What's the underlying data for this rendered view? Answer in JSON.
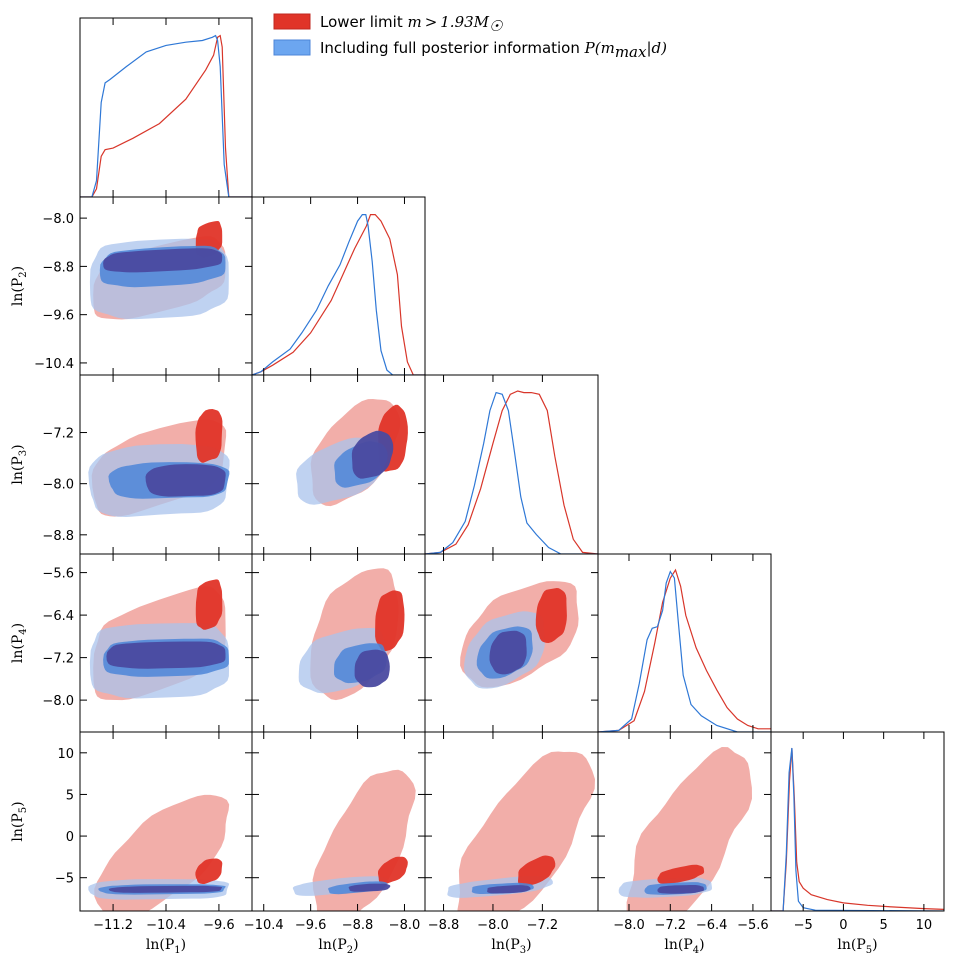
{
  "chart_data": {
    "type": "corner",
    "title": "",
    "parameters": [
      "ln(P1)",
      "ln(P2)",
      "ln(P3)",
      "ln(P4)",
      "ln(P5)"
    ],
    "axis_labels": {
      "p1": {
        "base": "ln(P",
        "sub": "1",
        "close": ")"
      },
      "p2": {
        "base": "ln(P",
        "sub": "2",
        "close": ")"
      },
      "p3": {
        "base": "ln(P",
        "sub": "3",
        "close": ")"
      },
      "p4": {
        "base": "ln(P",
        "sub": "4",
        "close": ")"
      },
      "p5": {
        "base": "ln(P",
        "sub": "5",
        "close": ")"
      }
    },
    "ranges": {
      "p1": [
        -11.7,
        -9.1
      ],
      "p2": [
        -10.6,
        -7.65
      ],
      "p3": [
        -9.1,
        -6.3
      ],
      "p4": [
        -8.6,
        -5.25
      ],
      "p5": [
        -9,
        12.5
      ]
    },
    "ticks": {
      "p1": [
        -11.2,
        -10.4,
        -9.6
      ],
      "p2": [
        -10.4,
        -9.6,
        -8.8,
        -8.0
      ],
      "p3": [
        -8.8,
        -8.0,
        -7.2
      ],
      "p4": [
        -8.0,
        -7.2,
        -6.4,
        -5.6
      ],
      "p5": [
        -5,
        0,
        5,
        10
      ]
    },
    "tick_labels": {
      "p1": [
        "−11.2",
        "−10.4",
        "−9.6"
      ],
      "p2": [
        "−10.4",
        "−9.6",
        "−8.8",
        "−8.0"
      ],
      "p3": [
        "−8.8",
        "−8.0",
        "−7.2"
      ],
      "p4": [
        "−8.0",
        "−7.2",
        "−6.4",
        "−5.6"
      ],
      "p5": [
        "−5",
        "0",
        "5",
        "10"
      ]
    },
    "series": [
      {
        "name": "Lower limit m > 1.93 M_sun",
        "legend_text": "Lower limit",
        "legend_math": "m > 1.93M",
        "legend_math_sub": "☉",
        "color_dark": "#e03428",
        "color_light": "#f0a09a",
        "marginals": {
          "p1": {
            "x": [
              -11.7,
              -11.52,
              -11.45,
              -11.38,
              -11.32,
              -11.2,
              -10.9,
              -10.5,
              -10.1,
              -9.8,
              -9.68,
              -9.62,
              -9.58,
              -9.55,
              -9.5,
              -9.45,
              -9.1
            ],
            "y": [
              0,
              0,
              0.05,
              0.25,
              0.29,
              0.3,
              0.36,
              0.45,
              0.6,
              0.78,
              0.87,
              0.98,
              0.99,
              0.92,
              0.3,
              0,
              0
            ]
          },
          "p2": {
            "x": [
              -10.6,
              -10.45,
              -10.25,
              -9.9,
              -9.6,
              -9.25,
              -9.05,
              -8.85,
              -8.65,
              -8.58,
              -8.5,
              -8.4,
              -8.25,
              -8.12,
              -8.05,
              -7.95,
              -7.85,
              -7.65
            ],
            "y": [
              0,
              0.02,
              0.06,
              0.14,
              0.26,
              0.46,
              0.62,
              0.78,
              0.92,
              0.99,
              0.99,
              0.95,
              0.84,
              0.62,
              0.3,
              0.08,
              0,
              0
            ]
          },
          "p3": {
            "x": [
              -9.1,
              -8.85,
              -8.6,
              -8.4,
              -8.2,
              -8.0,
              -7.85,
              -7.72,
              -7.6,
              -7.5,
              -7.38,
              -7.25,
              -7.12,
              -7.0,
              -6.85,
              -6.7,
              -6.55,
              -6.3
            ],
            "y": [
              0,
              0.01,
              0.06,
              0.18,
              0.4,
              0.68,
              0.88,
              0.98,
              1.0,
              0.99,
              0.99,
              0.98,
              0.88,
              0.6,
              0.3,
              0.09,
              0.01,
              0
            ]
          },
          "p4": {
            "x": [
              -8.6,
              -8.2,
              -7.9,
              -7.7,
              -7.5,
              -7.35,
              -7.2,
              -7.1,
              -7.0,
              -6.9,
              -6.7,
              -6.5,
              -6.3,
              -6.1,
              -5.9,
              -5.7,
              -5.5,
              -5.25
            ],
            "y": [
              0,
              0.01,
              0.07,
              0.25,
              0.55,
              0.8,
              0.95,
              1.0,
              0.9,
              0.72,
              0.52,
              0.38,
              0.26,
              0.15,
              0.08,
              0.04,
              0.02,
              0.02
            ]
          },
          "p5": {
            "x": [
              -9,
              -7.5,
              -7.1,
              -6.7,
              -6.4,
              -6.1,
              -5.8,
              -5.5,
              -5.0,
              -4.0,
              -2.0,
              0,
              3,
              6,
              10,
              12.5
            ],
            "y": [
              0,
              0,
              0.3,
              0.8,
              1.0,
              0.7,
              0.3,
              0.18,
              0.14,
              0.1,
              0.07,
              0.05,
              0.035,
              0.025,
              0.015,
              0.01
            ]
          }
        }
      },
      {
        "name": "Including full posterior information P(m_max|d)",
        "legend_text": "Including full posterior information",
        "legend_math": "P(m",
        "legend_math_sub": "max",
        "legend_math_end": "|d)",
        "color_dark": "#4c86d8",
        "color_light": "#a9c3ec",
        "color_overlap": "#4a4aa0",
        "marginals": {
          "p1": {
            "x": [
              -11.7,
              -11.52,
              -11.45,
              -11.38,
              -11.32,
              -11.25,
              -11.0,
              -10.7,
              -10.4,
              -10.1,
              -9.85,
              -9.7,
              -9.65,
              -9.62,
              -9.58,
              -9.52,
              -9.45,
              -9.1
            ],
            "y": [
              0,
              0,
              0.1,
              0.58,
              0.7,
              0.72,
              0.8,
              0.89,
              0.93,
              0.95,
              0.96,
              0.98,
              0.99,
              0.96,
              0.8,
              0.2,
              0,
              0
            ]
          },
          "p2": {
            "x": [
              -10.6,
              -10.45,
              -10.25,
              -9.95,
              -9.75,
              -9.5,
              -9.3,
              -9.1,
              -8.95,
              -8.8,
              -8.72,
              -8.66,
              -8.62,
              -8.55,
              -8.48,
              -8.4,
              -8.3,
              -8.2,
              -7.65
            ],
            "y": [
              0,
              0.02,
              0.08,
              0.16,
              0.26,
              0.4,
              0.55,
              0.68,
              0.82,
              0.95,
              0.99,
              0.99,
              0.92,
              0.7,
              0.4,
              0.15,
              0.03,
              0,
              0
            ]
          },
          "p3": {
            "x": [
              -9.1,
              -8.85,
              -8.65,
              -8.45,
              -8.3,
              -8.15,
              -8.05,
              -7.95,
              -7.85,
              -7.75,
              -7.65,
              -7.55,
              -7.45,
              -7.3,
              -7.1,
              -6.9,
              -6.3
            ],
            "y": [
              0,
              0.01,
              0.07,
              0.2,
              0.42,
              0.68,
              0.88,
              0.99,
              0.98,
              0.88,
              0.62,
              0.35,
              0.19,
              0.12,
              0.04,
              0,
              0
            ]
          },
          "p4": {
            "x": [
              -8.6,
              -8.2,
              -7.95,
              -7.8,
              -7.65,
              -7.55,
              -7.45,
              -7.35,
              -7.28,
              -7.2,
              -7.12,
              -7.05,
              -6.95,
              -6.8,
              -6.6,
              -6.3,
              -5.9,
              -5.25
            ],
            "y": [
              0,
              0.01,
              0.08,
              0.3,
              0.57,
              0.64,
              0.65,
              0.75,
              0.92,
              0.99,
              0.95,
              0.7,
              0.35,
              0.17,
              0.1,
              0.04,
              0,
              0
            ]
          },
          "p5": {
            "x": [
              -9,
              -7.5,
              -7.1,
              -6.75,
              -6.4,
              -6.15,
              -5.9,
              -5.6,
              -5.0,
              -3.5,
              12.5
            ],
            "y": [
              0,
              0,
              0.35,
              0.85,
              1.0,
              0.7,
              0.25,
              0.06,
              0.02,
              0.005,
              0
            ]
          }
        }
      }
    ]
  }
}
